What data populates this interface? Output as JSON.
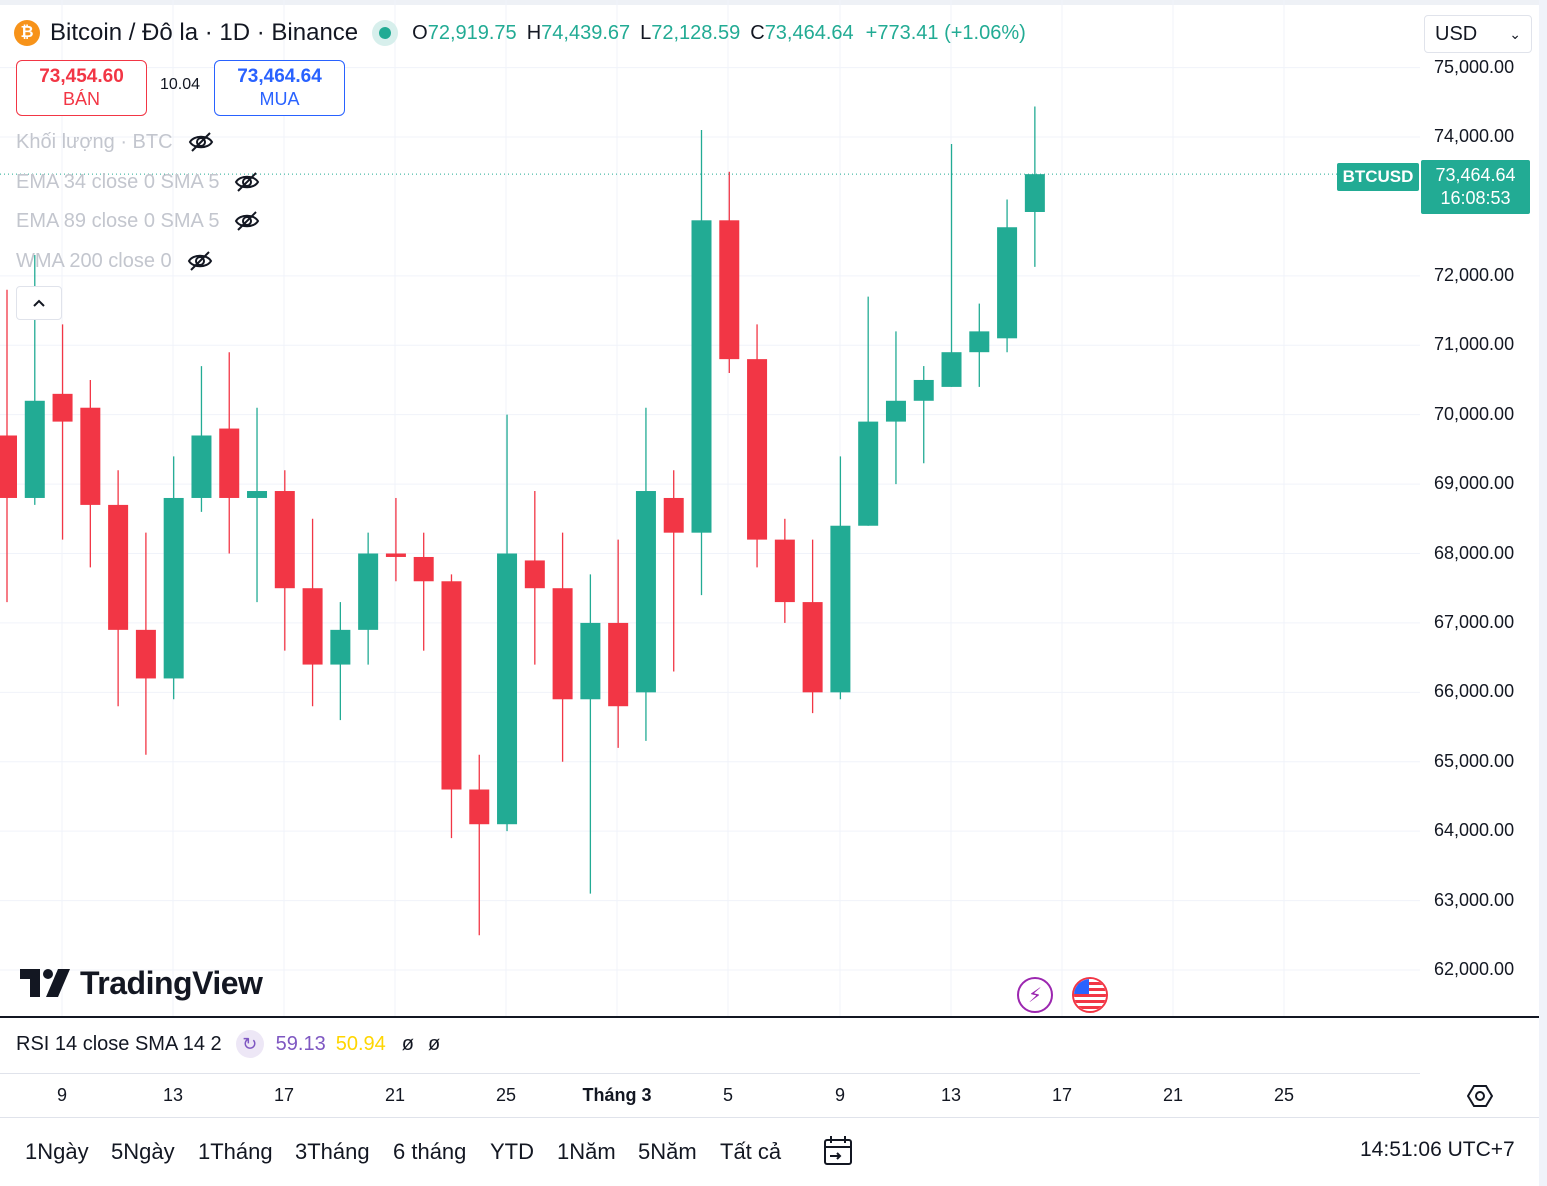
{
  "header": {
    "symbol_title": "Bitcoin / Đô la · 1D · Binance",
    "open_key": "O",
    "open": "72,919.75",
    "high_key": "H",
    "high": "74,439.67",
    "low_key": "L",
    "low": "72,128.59",
    "close_key": "C",
    "close": "73,464.64",
    "change": "+773.41 (+1.06%)",
    "currency": "USD",
    "logo_glyph": "₿"
  },
  "trade": {
    "sell_price": "73,454.60",
    "sell_label": "BÁN",
    "spread": "10.04",
    "buy_price": "73,464.64",
    "buy_label": "MUA"
  },
  "indicators": [
    {
      "label": "Khối lượng · BTC"
    },
    {
      "label": "EMA 34 close 0 SMA 5"
    },
    {
      "label": "EMA 89 close 0 SMA 5"
    },
    {
      "label": "WMA 200 close 0"
    }
  ],
  "price_axis": {
    "labels": [
      "75,000.00",
      "74,000.00",
      "72,000.00",
      "71,000.00",
      "70,000.00",
      "69,000.00",
      "68,000.00",
      "67,000.00",
      "66,000.00",
      "65,000.00",
      "64,000.00",
      "63,000.00",
      "62,000.00"
    ]
  },
  "last_price": {
    "symbol": "BTCUSD",
    "price": "73,464.64",
    "countdown": "16:08:53",
    "color": "#22ab94"
  },
  "branding": {
    "name": "TradingView"
  },
  "rsi": {
    "title": "RSI 14 close SMA 14 2",
    "value": "59.13",
    "sma": "50.94",
    "na1": "ø",
    "na2": "ø"
  },
  "time_axis": {
    "labels": [
      "9",
      "13",
      "17",
      "21",
      "25",
      "Tháng 3",
      "5",
      "9",
      "13",
      "17",
      "21",
      "25"
    ]
  },
  "toolbar": {
    "ranges": [
      "1Ngày",
      "5Ngày",
      "1Tháng",
      "3Tháng",
      "6 tháng",
      "YTD",
      "1Năm",
      "5Năm",
      "Tất cả"
    ],
    "clock": "14:51:06 UTC+7"
  },
  "colors": {
    "up": "#22ab94",
    "down": "#f23645",
    "grid": "#f0f3fa",
    "rsi": "#7e57c2",
    "rsi_sma": "#ffd600"
  },
  "chart_data": {
    "type": "candlestick",
    "title": "Bitcoin / Đô la · 1D · Binance",
    "xlabel": "",
    "ylabel": "",
    "ylim": [
      61200,
      75500
    ],
    "grid": true,
    "candles": [
      {
        "date": "Feb 6",
        "open": 69700,
        "high": 71800,
        "low": 67300,
        "close": 68800
      },
      {
        "date": "Feb 7",
        "open": 68800,
        "high": 72300,
        "low": 68700,
        "close": 70200
      },
      {
        "date": "Feb 8",
        "open": 70300,
        "high": 71300,
        "low": 68200,
        "close": 69900
      },
      {
        "date": "Feb 9",
        "open": 70100,
        "high": 70500,
        "low": 67800,
        "close": 68700
      },
      {
        "date": "Feb 10",
        "open": 68700,
        "high": 69200,
        "low": 65800,
        "close": 66900
      },
      {
        "date": "Feb 11",
        "open": 66900,
        "high": 68300,
        "low": 65100,
        "close": 66200
      },
      {
        "date": "Feb 12",
        "open": 66200,
        "high": 69400,
        "low": 65900,
        "close": 68800
      },
      {
        "date": "Feb 13",
        "open": 68800,
        "high": 70700,
        "low": 68600,
        "close": 69700
      },
      {
        "date": "Feb 14",
        "open": 69800,
        "high": 70900,
        "low": 68000,
        "close": 68800
      },
      {
        "date": "Feb 15",
        "open": 68800,
        "high": 70100,
        "low": 67300,
        "close": 68900
      },
      {
        "date": "Feb 16",
        "open": 68900,
        "high": 69200,
        "low": 66600,
        "close": 67500
      },
      {
        "date": "Feb 17",
        "open": 67500,
        "high": 68500,
        "low": 65800,
        "close": 66400
      },
      {
        "date": "Feb 18",
        "open": 66400,
        "high": 67300,
        "low": 65600,
        "close": 66900
      },
      {
        "date": "Feb 19",
        "open": 66900,
        "high": 68300,
        "low": 66400,
        "close": 68000
      },
      {
        "date": "Feb 20",
        "open": 68000,
        "high": 68800,
        "low": 67600,
        "close": 67950
      },
      {
        "date": "Feb 21",
        "open": 67950,
        "high": 68300,
        "low": 66600,
        "close": 67600
      },
      {
        "date": "Feb 22",
        "open": 67600,
        "high": 67700,
        "low": 63900,
        "close": 64600
      },
      {
        "date": "Feb 23",
        "open": 64600,
        "high": 65100,
        "low": 62500,
        "close": 64100
      },
      {
        "date": "Feb 24",
        "open": 64100,
        "high": 70000,
        "low": 64000,
        "close": 68000
      },
      {
        "date": "Feb 25",
        "open": 67900,
        "high": 68900,
        "low": 66400,
        "close": 67500
      },
      {
        "date": "Feb 26",
        "open": 67500,
        "high": 68300,
        "low": 65000,
        "close": 65900
      },
      {
        "date": "Feb 27",
        "open": 65900,
        "high": 67700,
        "low": 63100,
        "close": 67000
      },
      {
        "date": "Feb 28",
        "open": 67000,
        "high": 68200,
        "low": 65200,
        "close": 65800
      },
      {
        "date": "Mar 1",
        "open": 66000,
        "high": 70100,
        "low": 65300,
        "close": 68900
      },
      {
        "date": "Mar 2",
        "open": 68800,
        "high": 69200,
        "low": 66300,
        "close": 68300
      },
      {
        "date": "Mar 3",
        "open": 68300,
        "high": 74100,
        "low": 67400,
        "close": 72800
      },
      {
        "date": "Mar 4",
        "open": 72800,
        "high": 73500,
        "low": 70600,
        "close": 70800
      },
      {
        "date": "Mar 5",
        "open": 70800,
        "high": 71300,
        "low": 67800,
        "close": 68200
      },
      {
        "date": "Mar 6",
        "open": 68200,
        "high": 68500,
        "low": 67000,
        "close": 67300
      },
      {
        "date": "Mar 7",
        "open": 67300,
        "high": 68200,
        "low": 65700,
        "close": 66000
      },
      {
        "date": "Mar 8",
        "open": 66000,
        "high": 69400,
        "low": 65900,
        "close": 68400
      },
      {
        "date": "Mar 9",
        "open": 68400,
        "high": 71700,
        "low": 68400,
        "close": 69900
      },
      {
        "date": "Mar 10",
        "open": 69900,
        "high": 71200,
        "low": 69000,
        "close": 70200
      },
      {
        "date": "Mar 11",
        "open": 70200,
        "high": 70700,
        "low": 69300,
        "close": 70500
      },
      {
        "date": "Mar 12",
        "open": 70400,
        "high": 73900,
        "low": 70400,
        "close": 70900
      },
      {
        "date": "Mar 13",
        "open": 70900,
        "high": 71600,
        "low": 70400,
        "close": 71200
      },
      {
        "date": "Mar 14",
        "open": 71100,
        "high": 73100,
        "low": 70900,
        "close": 72700
      },
      {
        "date": "Mar 15",
        "open": 72919.75,
        "high": 74439.67,
        "low": 72128.59,
        "close": 73464.64
      }
    ]
  }
}
